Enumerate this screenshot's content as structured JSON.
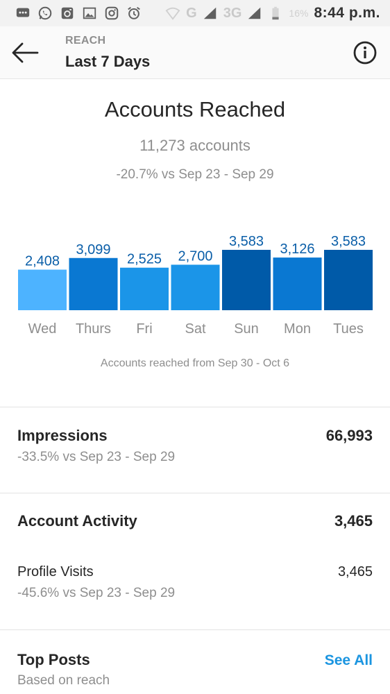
{
  "status_bar": {
    "network": "G",
    "network2": "3G",
    "battery": "16%",
    "time": "8:44 p.m."
  },
  "header": {
    "subtitle": "REACH",
    "title": "Last 7 Days"
  },
  "accounts_reached": {
    "title": "Accounts Reached",
    "count": "11,273 accounts",
    "delta": "-20.7% vs Sep 23 - Sep 29",
    "caption": "Accounts reached from Sep 30 - Oct 6"
  },
  "chart_data": {
    "type": "bar",
    "categories": [
      "Wed",
      "Thurs",
      "Fri",
      "Sat",
      "Sun",
      "Mon",
      "Tues"
    ],
    "values": [
      2408,
      3099,
      2525,
      2700,
      3583,
      3126,
      3583
    ],
    "data_labels": [
      "2,408",
      "3,099",
      "2,525",
      "2,700",
      "3,583",
      "3,126",
      "3,583"
    ],
    "colors": [
      "#4db3ff",
      "#0a78d2",
      "#1b95e8",
      "#1b95e8",
      "#005aa8",
      "#0a78d2",
      "#005aa8"
    ],
    "label_color": "#0a5ea8",
    "grid": false
  },
  "impressions": {
    "title": "Impressions",
    "value": "66,993",
    "delta": "-33.5% vs Sep 23 - Sep 29"
  },
  "account_activity": {
    "title": "Account Activity",
    "value": "3,465",
    "profile_visits_label": "Profile Visits",
    "profile_visits_value": "3,465",
    "profile_visits_delta": "-45.6% vs Sep 23 - Sep 29"
  },
  "top_posts": {
    "title": "Top Posts",
    "subtitle": "Based on reach",
    "see_all": "See All"
  }
}
